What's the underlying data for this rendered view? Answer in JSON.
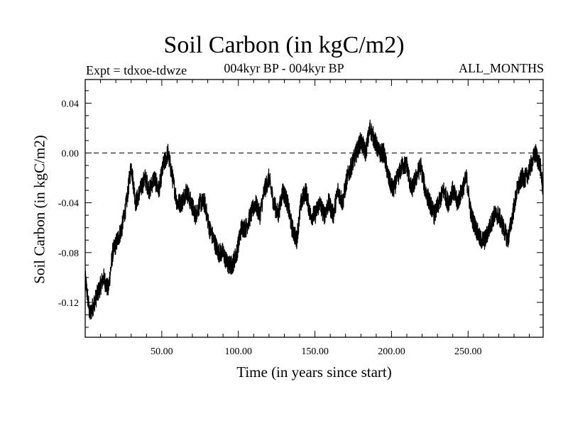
{
  "chart_data": {
    "type": "line",
    "title": "Soil Carbon (in kgC/m2)",
    "subtitle_left": "Expt = tdxoe-tdwze",
    "subtitle_center": "004kyr BP - 004kyr BP",
    "subtitle_right": "ALL_MONTHS",
    "xlabel": "Time (in years since start)",
    "ylabel": "Soil Carbon (in kgC/m2)",
    "xlim": [
      0,
      299
    ],
    "ylim": [
      -0.148,
      0.059
    ],
    "xticks": [
      50,
      100,
      150,
      200,
      250
    ],
    "xtick_labels": [
      "50.00",
      "100.00",
      "150.00",
      "200.00",
      "250.00"
    ],
    "yticks": [
      0.04,
      0.0,
      -0.04,
      -0.08,
      -0.12
    ],
    "ytick_labels": [
      "0.04",
      "0.00",
      "-0.04",
      "-0.08",
      "-0.12"
    ],
    "reference_line": {
      "y": 0.0,
      "style": "dashed"
    },
    "grid": false,
    "series": [
      {
        "color": "#000000",
        "x": [
          0,
          3,
          6,
          9,
          12,
          15,
          18,
          21,
          24,
          27,
          30,
          33,
          36,
          39,
          42,
          45,
          48,
          51,
          54,
          57,
          60,
          63,
          66,
          69,
          72,
          75,
          78,
          81,
          84,
          87,
          90,
          93,
          96,
          99,
          102,
          105,
          108,
          111,
          114,
          117,
          120,
          123,
          126,
          129,
          132,
          135,
          138,
          141,
          144,
          147,
          150,
          153,
          156,
          159,
          162,
          165,
          168,
          171,
          174,
          177,
          180,
          183,
          186,
          189,
          192,
          195,
          198,
          201,
          204,
          207,
          210,
          213,
          216,
          219,
          222,
          225,
          228,
          231,
          234,
          237,
          240,
          243,
          246,
          249,
          252,
          255,
          258,
          261,
          264,
          267,
          270,
          273,
          276,
          279,
          282,
          285,
          288,
          291,
          294,
          297,
          299
        ],
        "y": [
          -0.1,
          -0.13,
          -0.12,
          -0.11,
          -0.1,
          -0.11,
          -0.08,
          -0.07,
          -0.06,
          -0.04,
          -0.01,
          -0.04,
          -0.03,
          -0.02,
          -0.03,
          -0.02,
          -0.03,
          -0.01,
          0.0,
          -0.02,
          -0.04,
          -0.04,
          -0.03,
          -0.04,
          -0.05,
          -0.04,
          -0.04,
          -0.06,
          -0.07,
          -0.08,
          -0.08,
          -0.09,
          -0.09,
          -0.08,
          -0.06,
          -0.06,
          -0.05,
          -0.04,
          -0.05,
          -0.03,
          -0.02,
          -0.04,
          -0.05,
          -0.03,
          -0.04,
          -0.06,
          -0.07,
          -0.04,
          -0.03,
          -0.05,
          -0.05,
          -0.04,
          -0.05,
          -0.04,
          -0.05,
          -0.03,
          -0.04,
          -0.02,
          -0.01,
          0.0,
          0.01,
          0.0,
          0.02,
          0.01,
          0.0,
          0.0,
          -0.02,
          -0.03,
          -0.02,
          -0.01,
          -0.01,
          -0.03,
          -0.02,
          -0.01,
          -0.03,
          -0.04,
          -0.05,
          -0.04,
          -0.03,
          -0.04,
          -0.03,
          -0.04,
          -0.03,
          -0.02,
          -0.05,
          -0.06,
          -0.07,
          -0.07,
          -0.06,
          -0.05,
          -0.05,
          -0.06,
          -0.07,
          -0.05,
          -0.03,
          -0.02,
          -0.02,
          -0.01,
          0.0,
          -0.01,
          -0.03
        ],
        "noise_amplitude": 0.008
      }
    ]
  }
}
